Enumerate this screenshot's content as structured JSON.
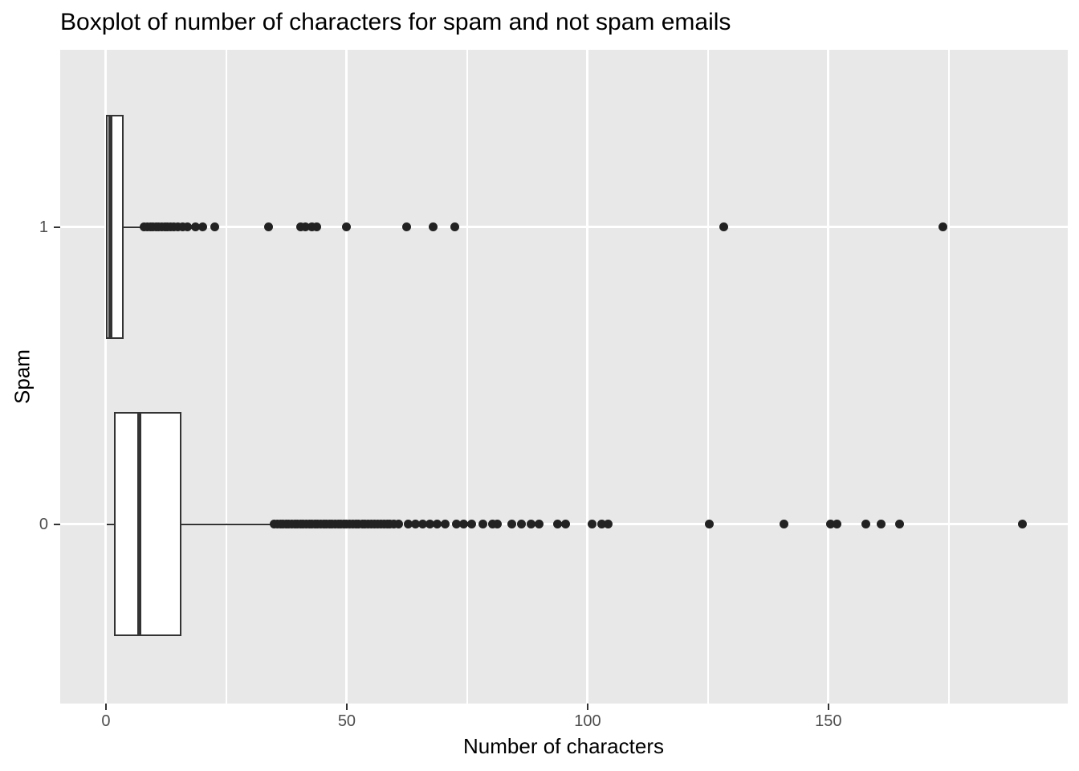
{
  "page": {
    "background": "#FFFFFF"
  },
  "chart_data": {
    "type": "boxplot",
    "orientation": "horizontal",
    "title": "Boxplot of number of characters for spam and not spam emails",
    "xlabel": "Number of characters",
    "ylabel": "Spam",
    "panel_bg": "#E8E8E8",
    "gridline_color": "#FFFFFF",
    "box_stroke_color": "#333333",
    "box_fill_color": "#FFFFFF",
    "point_color": "#222222",
    "tick_label_color": "#4D4D4D",
    "tick_mark_color": "#333333",
    "grid": true,
    "legend": "none",
    "xlim": [
      -9.5,
      199.7
    ],
    "ylim": [
      -0.603,
      1.597
    ],
    "x_major_ticks": [
      {
        "value": 0,
        "label": "0"
      },
      {
        "value": 50,
        "label": "50"
      },
      {
        "value": 100,
        "label": "100"
      },
      {
        "value": 150,
        "label": "150"
      }
    ],
    "x_minor_gridlines": [
      25,
      75,
      125,
      175
    ],
    "y_ticks": [
      {
        "value": 1,
        "label": "1"
      },
      {
        "value": 0,
        "label": "0"
      }
    ],
    "box_half_height": 0.377,
    "series": [
      {
        "category": "1",
        "y": 1,
        "whisker_low": 0,
        "q1": 0.2,
        "median": 0.9,
        "q3": 3.5,
        "whisker_high": 7.7,
        "outliers": [
          8,
          8.6,
          9.2,
          9.8,
          10.4,
          11,
          11.6,
          12.2,
          12.8,
          13.4,
          14.1,
          15,
          16,
          16.9,
          18.6,
          20.1,
          22.6,
          33.8,
          40.4,
          41.5,
          42.7,
          43.8,
          50,
          62.5,
          67.9,
          72.5,
          128.2,
          173.8
        ]
      },
      {
        "category": "0",
        "y": 0,
        "whisker_low": 0.2,
        "q1": 1.9,
        "median": 6.9,
        "q3": 15.5,
        "whisker_high": 34.6,
        "outliers": [
          35,
          35.6,
          36.2,
          36.8,
          37.4,
          38,
          38.6,
          39.2,
          39.8,
          40.4,
          41,
          41.6,
          42.2,
          42.8,
          43.4,
          44,
          44.6,
          45.2,
          45.8,
          46.4,
          47,
          47.6,
          48.2,
          48.8,
          49.4,
          50,
          50.6,
          51.3,
          51.9,
          52.5,
          53.2,
          53.8,
          54.5,
          55.1,
          55.8,
          56.4,
          57.1,
          57.7,
          58.4,
          59,
          59.7,
          60.8,
          62.7,
          64.3,
          65.8,
          67.2,
          68.8,
          70.5,
          72.7,
          74.3,
          76,
          78.3,
          80.2,
          81.3,
          84.3,
          86.3,
          88.3,
          90,
          93.8,
          95.5,
          101,
          103,
          104.3,
          125.3,
          140.8,
          150.5,
          151.7,
          157.8,
          160.9,
          164.8,
          190.2
        ]
      }
    ]
  }
}
